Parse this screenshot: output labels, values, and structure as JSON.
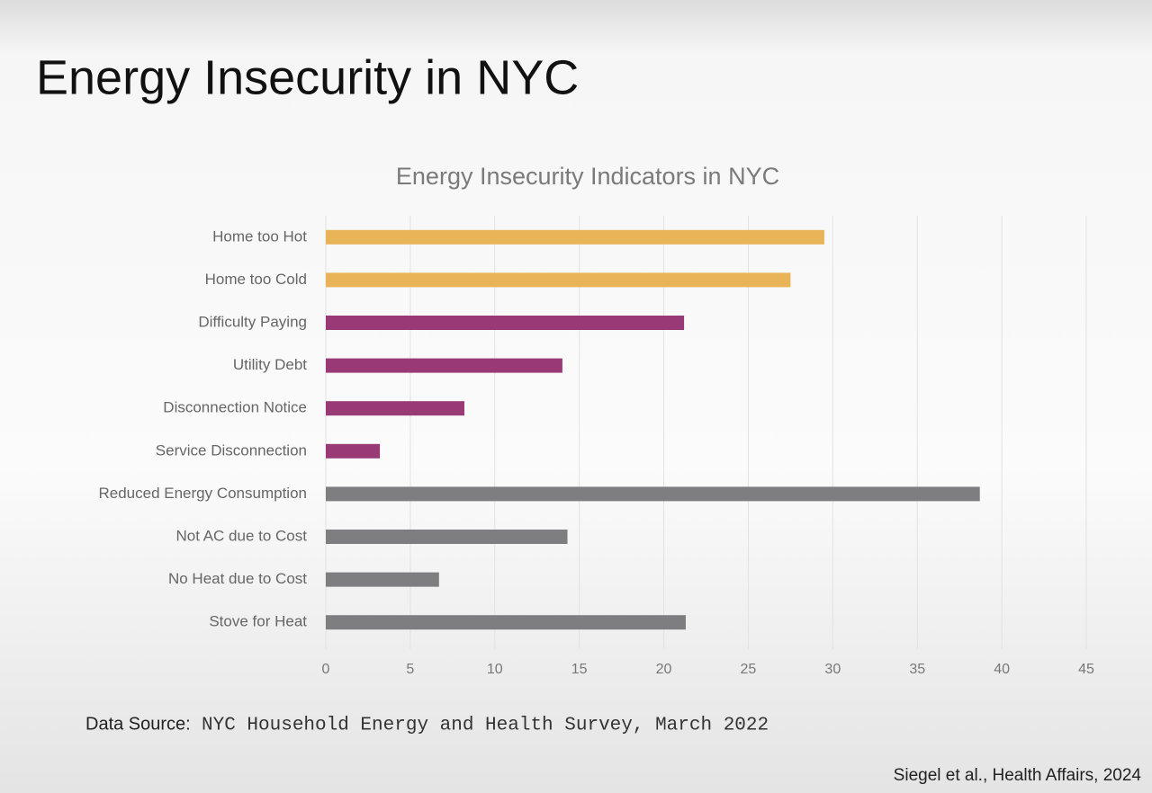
{
  "slide": {
    "title": "Energy Insecurity in NYC"
  },
  "chart_data": {
    "type": "bar",
    "orientation": "horizontal",
    "title": "Energy Insecurity Indicators in NYC",
    "categories": [
      "Home too Hot",
      "Home too Cold",
      "Difficulty Paying",
      "Utility Debt",
      "Disconnection Notice",
      "Service Disconnection",
      "Reduced Energy Consumption",
      "Not AC due to Cost",
      "No Heat due to Cost",
      "Stove for Heat"
    ],
    "values": [
      29.5,
      27.5,
      21.2,
      14.0,
      8.2,
      3.2,
      38.7,
      14.3,
      6.7,
      21.3
    ],
    "colors": [
      "#e8b457",
      "#e8b457",
      "#993a76",
      "#993a76",
      "#993a76",
      "#993a76",
      "#7e7e80",
      "#7e7e80",
      "#7e7e80",
      "#7e7e80"
    ],
    "xlim": [
      0,
      45
    ],
    "xticks": [
      0,
      5,
      10,
      15,
      20,
      25,
      30,
      35,
      40,
      45
    ],
    "grid": true
  },
  "footer": {
    "source_label": "Data Source:",
    "source": "NYC Household Energy and Health Survey, March 2022",
    "citation": "Siegel et al., Health Affairs, 2024"
  }
}
